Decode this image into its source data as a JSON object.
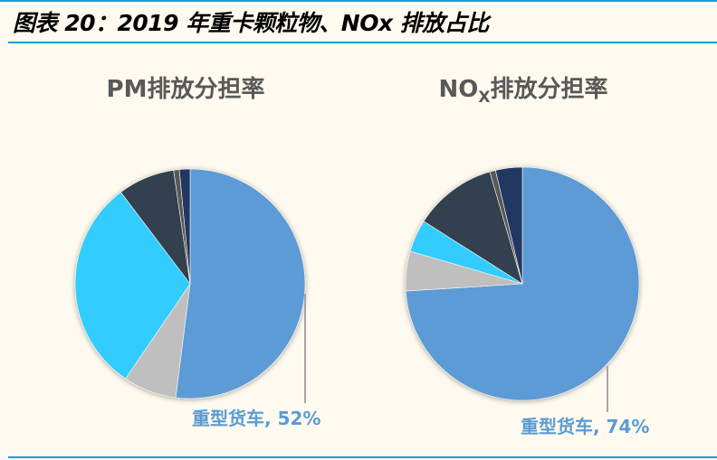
{
  "figure_title": "图表 20：2019 年重卡颗粒物、NOx 排放占比",
  "chart_data": [
    {
      "type": "pie",
      "title": "PM排放分担率",
      "title_subscript": "",
      "slices": [
        {
          "value": 52,
          "color": "#5b9bd5",
          "label": "重型货车, 52%"
        },
        {
          "value": 7.5,
          "color": "#bfbfbf",
          "label": ""
        },
        {
          "value": 30.2,
          "color": "#33ccff",
          "label": ""
        },
        {
          "value": 8,
          "color": "#333f50",
          "label": ""
        },
        {
          "value": 0.8,
          "color": "#595959",
          "label": ""
        },
        {
          "value": 1.5,
          "color": "#203864",
          "label": ""
        }
      ]
    },
    {
      "type": "pie",
      "title": "NO",
      "title_subscript": "X",
      "title_suffix": "排放分担率",
      "slices": [
        {
          "value": 74,
          "color": "#5b9bd5",
          "label": "重型货车, 74%"
        },
        {
          "value": 5.5,
          "color": "#bfbfbf",
          "label": ""
        },
        {
          "value": 4.5,
          "color": "#33ccff",
          "label": ""
        },
        {
          "value": 11.5,
          "color": "#333f50",
          "label": ""
        },
        {
          "value": 0.8,
          "color": "#595959",
          "label": ""
        },
        {
          "value": 3.7,
          "color": "#203864",
          "label": ""
        }
      ]
    }
  ]
}
